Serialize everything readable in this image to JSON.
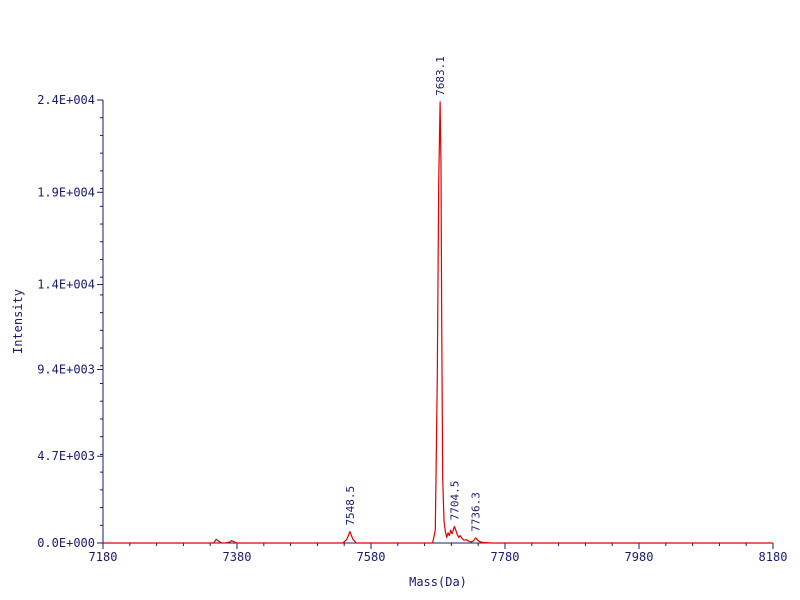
{
  "chart_data": {
    "type": "line",
    "title": "",
    "xlabel": "Mass(Da)",
    "ylabel": "Intensity",
    "xlim": [
      7180,
      8180
    ],
    "ylim": [
      0,
      24000
    ],
    "x_ticks": [
      7180,
      7380,
      7580,
      7780,
      7980,
      8180
    ],
    "y_ticks": [
      0,
      4700,
      9400,
      14000,
      19000,
      24000
    ],
    "y_tick_labels": [
      "0.0E+000",
      "4.7E+003",
      "9.4E+003",
      "1.4E+004",
      "1.9E+004",
      "2.4E+004"
    ],
    "grid": false,
    "series_color": "#e00000",
    "axis_color": "#1a1a6e",
    "series": [
      {
        "x": [
          7180,
          7300,
          7345,
          7349,
          7353,
          7358,
          7362,
          7369,
          7372,
          7376,
          7380,
          7500,
          7538,
          7544,
          7548.5,
          7553,
          7558,
          7650,
          7672,
          7676,
          7679,
          7681,
          7683.1,
          7684.5,
          7685.5,
          7687,
          7689,
          7691,
          7693,
          7695,
          7697,
          7699,
          7701,
          7704.5,
          7707,
          7709,
          7711,
          7713,
          7716,
          7719,
          7722,
          7726,
          7730,
          7733,
          7736.3,
          7739,
          7742,
          7746,
          7760,
          7900,
          8180
        ],
        "y": [
          0,
          0,
          0,
          200,
          80,
          0,
          0,
          50,
          130,
          60,
          0,
          0,
          0,
          200,
          620,
          200,
          0,
          0,
          0,
          700,
          9000,
          19500,
          23900,
          20500,
          12000,
          3500,
          1200,
          600,
          300,
          550,
          400,
          700,
          500,
          900,
          650,
          450,
          300,
          400,
          250,
          150,
          180,
          100,
          60,
          120,
          280,
          160,
          80,
          30,
          0,
          0,
          0
        ]
      }
    ],
    "annotations": [
      {
        "x": 7548.5,
        "y": 620,
        "text": "7548.5"
      },
      {
        "x": 7683.1,
        "y": 23900,
        "text": "7683.1"
      },
      {
        "x": 7704.5,
        "y": 900,
        "text": "7704.5"
      },
      {
        "x": 7736.3,
        "y": 280,
        "text": "7736.3"
      }
    ]
  }
}
